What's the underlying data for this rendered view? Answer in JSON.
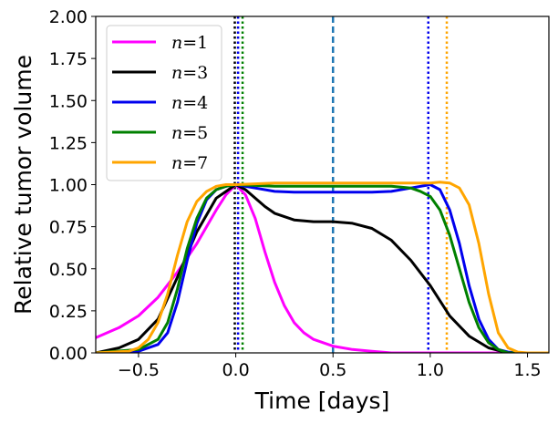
{
  "chart_data": {
    "type": "line",
    "title": "",
    "xlabel": "Time [days]",
    "ylabel": "Relative tumor volume",
    "xlim": [
      -0.72,
      1.61
    ],
    "ylim": [
      0.0,
      2.0
    ],
    "x_ticks": [
      -0.5,
      0.0,
      0.5,
      1.0,
      1.5
    ],
    "x_tick_labels": [
      "−0.5",
      "0.0",
      "0.5",
      "1.0",
      "1.5"
    ],
    "y_ticks": [
      0.0,
      0.25,
      0.5,
      0.75,
      1.0,
      1.25,
      1.5,
      1.75,
      2.0
    ],
    "y_tick_labels": [
      "0.00",
      "0.25",
      "0.50",
      "0.75",
      "1.00",
      "1.25",
      "1.50",
      "1.75",
      "2.00"
    ],
    "legend_position": "top-left",
    "series": [
      {
        "name": "n=1",
        "label_n": "n",
        "label_eq": "=",
        "label_num": "1",
        "color": "#ff00ff",
        "x": [
          -0.72,
          -0.6,
          -0.5,
          -0.4,
          -0.3,
          -0.2,
          -0.1,
          -0.05,
          0.0,
          0.05,
          0.1,
          0.15,
          0.2,
          0.25,
          0.3,
          0.35,
          0.4,
          0.5,
          0.6,
          0.7,
          0.8,
          1.0,
          1.2,
          1.4,
          1.61
        ],
        "y": [
          0.09,
          0.15,
          0.22,
          0.33,
          0.48,
          0.65,
          0.85,
          0.94,
          1.0,
          0.94,
          0.8,
          0.6,
          0.42,
          0.28,
          0.18,
          0.12,
          0.08,
          0.04,
          0.02,
          0.01,
          0.0,
          0.0,
          0.0,
          0.0,
          0.0
        ]
      },
      {
        "name": "n=3",
        "label_n": "n",
        "label_eq": "=",
        "label_num": "3",
        "color": "#000000",
        "x": [
          -0.72,
          -0.6,
          -0.5,
          -0.4,
          -0.3,
          -0.2,
          -0.1,
          0.0,
          0.05,
          0.1,
          0.15,
          0.2,
          0.3,
          0.4,
          0.5,
          0.6,
          0.7,
          0.8,
          0.9,
          1.0,
          1.1,
          1.2,
          1.3,
          1.4,
          1.61
        ],
        "y": [
          0.0,
          0.03,
          0.08,
          0.2,
          0.45,
          0.72,
          0.92,
          1.0,
          0.97,
          0.92,
          0.87,
          0.83,
          0.79,
          0.78,
          0.78,
          0.77,
          0.74,
          0.67,
          0.55,
          0.4,
          0.22,
          0.1,
          0.03,
          0.0,
          0.0
        ]
      },
      {
        "name": "n=4",
        "label_n": "n",
        "label_eq": "=",
        "label_num": "4",
        "color": "#0000ee",
        "x": [
          -0.72,
          -0.5,
          -0.4,
          -0.35,
          -0.3,
          -0.25,
          -0.2,
          -0.15,
          -0.1,
          -0.05,
          0.0,
          0.1,
          0.2,
          0.3,
          0.5,
          0.7,
          0.8,
          0.9,
          1.0,
          1.05,
          1.1,
          1.15,
          1.2,
          1.25,
          1.3,
          1.35,
          1.4,
          1.45,
          1.61
        ],
        "y": [
          0.0,
          0.01,
          0.05,
          0.12,
          0.3,
          0.55,
          0.77,
          0.91,
          0.97,
          0.99,
          1.0,
          0.98,
          0.96,
          0.955,
          0.955,
          0.955,
          0.96,
          0.98,
          1.0,
          0.97,
          0.85,
          0.65,
          0.4,
          0.2,
          0.08,
          0.02,
          0.005,
          0.0,
          0.0
        ]
      },
      {
        "name": "n=5",
        "label_n": "n",
        "label_eq": "=",
        "label_num": "5",
        "color": "#008000",
        "x": [
          -0.72,
          -0.5,
          -0.4,
          -0.35,
          -0.3,
          -0.25,
          -0.2,
          -0.15,
          -0.1,
          -0.05,
          0.0,
          0.2,
          0.5,
          0.8,
          0.9,
          0.95,
          1.0,
          1.05,
          1.1,
          1.15,
          1.2,
          1.25,
          1.3,
          1.35,
          1.4,
          1.61
        ],
        "y": [
          0.0,
          0.02,
          0.08,
          0.18,
          0.38,
          0.62,
          0.8,
          0.92,
          0.97,
          0.99,
          1.0,
          0.99,
          0.99,
          0.99,
          0.98,
          0.96,
          0.93,
          0.85,
          0.7,
          0.5,
          0.3,
          0.15,
          0.06,
          0.02,
          0.0,
          0.0
        ]
      },
      {
        "name": "n=7",
        "label_n": "n",
        "label_eq": "=",
        "label_num": "7",
        "color": "#ffa500",
        "x": [
          -0.72,
          -0.55,
          -0.5,
          -0.45,
          -0.4,
          -0.35,
          -0.3,
          -0.25,
          -0.2,
          -0.15,
          -0.1,
          -0.05,
          0.0,
          0.2,
          0.5,
          0.8,
          1.0,
          1.05,
          1.1,
          1.15,
          1.2,
          1.25,
          1.3,
          1.35,
          1.4,
          1.45,
          1.5,
          1.61
        ],
        "y": [
          0.0,
          0.01,
          0.03,
          0.08,
          0.18,
          0.35,
          0.58,
          0.78,
          0.9,
          0.96,
          0.99,
          1.0,
          1.0,
          1.01,
          1.01,
          1.01,
          1.01,
          1.015,
          1.01,
          0.98,
          0.88,
          0.65,
          0.35,
          0.12,
          0.03,
          0.005,
          0.0,
          0.0
        ]
      }
    ],
    "vertical_lines": [
      {
        "x": -0.005,
        "color": "#000000",
        "style": "dotted"
      },
      {
        "x": 0.012,
        "color": "#0000ee",
        "style": "dotted"
      },
      {
        "x": 0.035,
        "color": "#008000",
        "style": "dotted"
      },
      {
        "x": 0.5,
        "color": "#1f77b4",
        "style": "dashed"
      },
      {
        "x": 0.99,
        "color": "#0000ee",
        "style": "dotted"
      },
      {
        "x": 1.085,
        "color": "#ffa500",
        "style": "dotted"
      }
    ]
  }
}
